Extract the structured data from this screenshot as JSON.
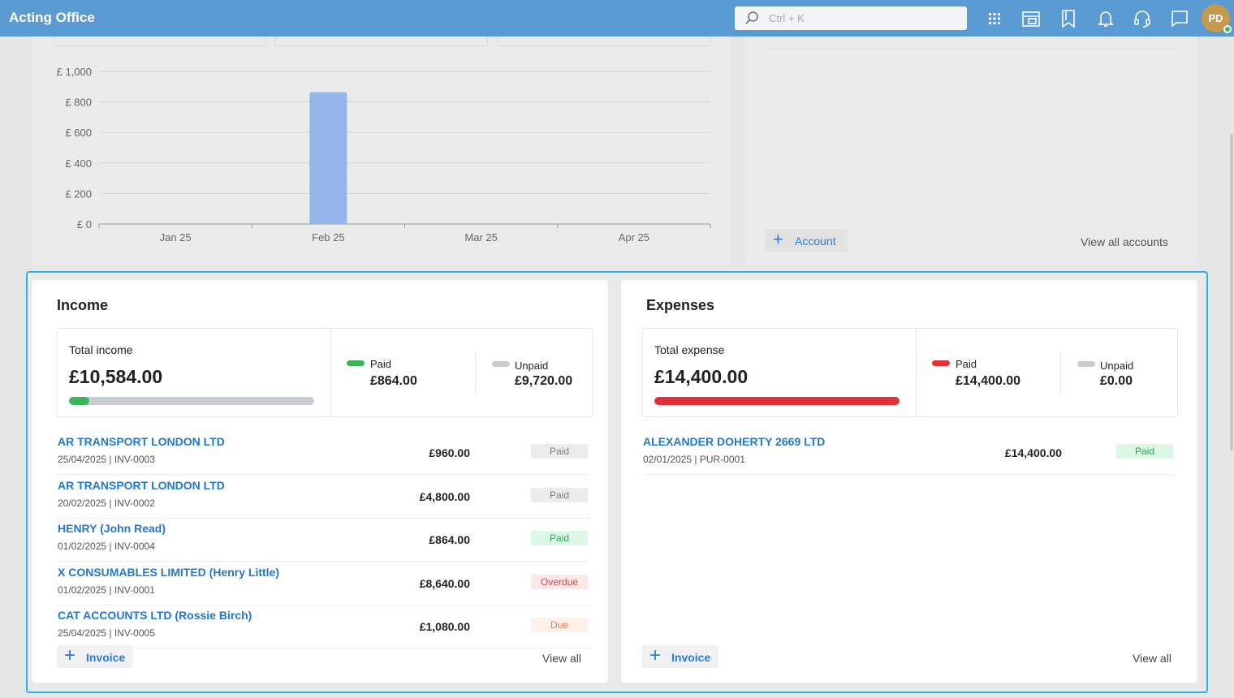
{
  "app": {
    "title": "Acting Office"
  },
  "search": {
    "placeholder": "Ctrl + K"
  },
  "user": {
    "initials": "PD"
  },
  "chart_data": {
    "type": "bar",
    "categories": [
      "Jan 25",
      "Feb 25",
      "Mar 25",
      "Apr 25"
    ],
    "values": [
      0,
      864,
      0,
      0
    ],
    "yticks": [
      "£ 0",
      "£ 200",
      "£ 400",
      "£ 600",
      "£ 800",
      "£ 1,000"
    ],
    "ylim": [
      0,
      1000
    ],
    "bar_color": "#94b6eb"
  },
  "accounts": {
    "add_label": "Account",
    "view_all": "View all accounts"
  },
  "income": {
    "title": "Income",
    "total_label": "Total income",
    "total_value": "£10,584.00",
    "paid_fraction": 0.082,
    "paid_label": "Paid",
    "paid_value": "£864.00",
    "unpaid_label": "Unpaid",
    "unpaid_value": "£9,720.00",
    "rows": [
      {
        "name": "AR TRANSPORT LONDON LTD",
        "meta": "25/04/2025 | INV-0003",
        "amount": "£960.00",
        "status": "Paid",
        "status_type": "muted"
      },
      {
        "name": "AR TRANSPORT LONDON LTD",
        "meta": "20/02/2025 | INV-0002",
        "amount": "£4,800.00",
        "status": "Paid",
        "status_type": "muted"
      },
      {
        "name": "HENRY (John Read)",
        "meta": "01/02/2025 | INV-0004",
        "amount": "£864.00",
        "status": "Paid",
        "status_type": "paid"
      },
      {
        "name": "X CONSUMABLES LIMITED (Henry Little)",
        "meta": "01/02/2025 | INV-0001",
        "amount": "£8,640.00",
        "status": "Overdue",
        "status_type": "overdue"
      },
      {
        "name": "CAT ACCOUNTS LTD (Rossie Birch)",
        "meta": "25/04/2025 | INV-0005",
        "amount": "£1,080.00",
        "status": "Due",
        "status_type": "due"
      }
    ],
    "add_label": "Invoice",
    "view_all": "View all"
  },
  "expenses": {
    "title": "Expenses",
    "total_label": "Total expense",
    "total_value": "£14,400.00",
    "paid_fraction": 1.0,
    "paid_label": "Paid",
    "paid_value": "£14,400.00",
    "unpaid_label": "Unpaid",
    "unpaid_value": "£0.00",
    "rows": [
      {
        "name": "ALEXANDER DOHERTY 2669 LTD",
        "meta": "02/01/2025 | PUR-0001",
        "amount": "£14,400.00",
        "status": "Paid",
        "status_type": "paid"
      }
    ],
    "add_label": "Invoice",
    "view_all": "View all"
  },
  "colors": {
    "topbar": "#5a9bd4",
    "link": "#2478c8",
    "income_paid": "#3cb55a",
    "expense_paid": "#e2303a",
    "unpaid": "#c9ccd1",
    "focus": "#26b5e6"
  }
}
